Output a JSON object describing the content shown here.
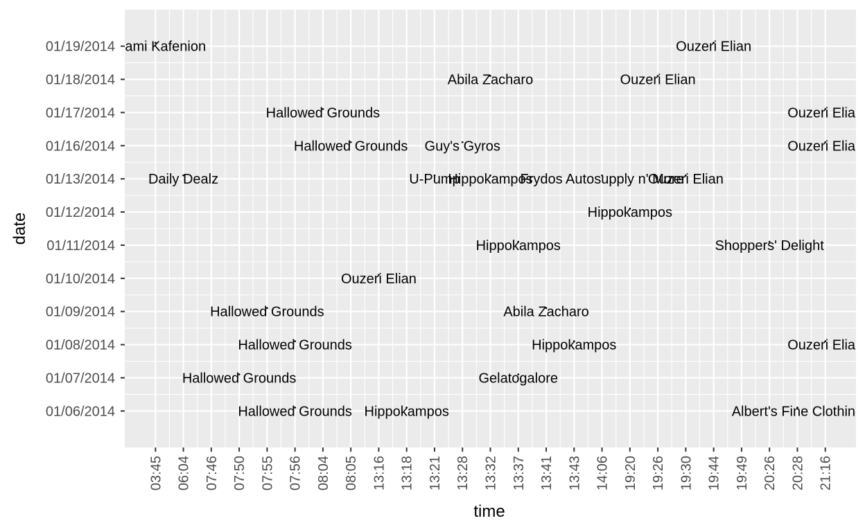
{
  "chart_data": {
    "type": "scatter",
    "title": "",
    "xlabel": "time",
    "ylabel": "date",
    "grid": true,
    "x_categories": [
      "03:45",
      "06:04",
      "07:46",
      "07:50",
      "07:55",
      "07:56",
      "08:04",
      "08:05",
      "13:16",
      "13:18",
      "13:21",
      "13:28",
      "13:32",
      "13:37",
      "13:41",
      "13:43",
      "14:06",
      "19:20",
      "19:26",
      "19:30",
      "19:44",
      "19:49",
      "20:26",
      "20:28",
      "21:16"
    ],
    "y_categories": [
      "01/06/2014",
      "01/07/2014",
      "01/08/2014",
      "01/09/2014",
      "01/10/2014",
      "01/11/2014",
      "01/12/2014",
      "01/13/2014",
      "01/16/2014",
      "01/17/2014",
      "01/18/2014",
      "01/19/2014"
    ],
    "points": [
      {
        "x": "03:45",
        "y": "01/19/2014",
        "label": "Kalami Kafenion"
      },
      {
        "x": "19:44",
        "y": "01/19/2014",
        "label": "Ouzeri Elian"
      },
      {
        "x": "13:32",
        "y": "01/18/2014",
        "label": "Abila Zacharo"
      },
      {
        "x": "19:26",
        "y": "01/18/2014",
        "label": "Ouzeri Elian"
      },
      {
        "x": "08:04",
        "y": "01/17/2014",
        "label": "Hallowed Grounds"
      },
      {
        "x": "21:16",
        "y": "01/17/2014",
        "label": "Ouzeri Elian"
      },
      {
        "x": "08:05",
        "y": "01/16/2014",
        "label": "Hallowed Grounds"
      },
      {
        "x": "13:28",
        "y": "01/16/2014",
        "label": "Guy's Gyros"
      },
      {
        "x": "21:16",
        "y": "01/16/2014",
        "label": "Ouzeri Elian"
      },
      {
        "x": "06:04",
        "y": "01/13/2014",
        "label": "Daily Dealz"
      },
      {
        "x": "13:21",
        "y": "01/13/2014",
        "label": "U-Pump"
      },
      {
        "x": "13:32",
        "y": "01/13/2014",
        "label": "Hippokampos"
      },
      {
        "x": "14:06",
        "y": "01/13/2014",
        "label": "Frydos Autosupply n' More"
      },
      {
        "x": "19:30",
        "y": "01/13/2014",
        "label": "Ouzeri Elian"
      },
      {
        "x": "19:20",
        "y": "01/12/2014",
        "label": "Hippokampos"
      },
      {
        "x": "13:37",
        "y": "01/11/2014",
        "label": "Hippokampos"
      },
      {
        "x": "20:26",
        "y": "01/11/2014",
        "label": "Shoppers' Delight"
      },
      {
        "x": "13:16",
        "y": "01/10/2014",
        "label": "Ouzeri Elian"
      },
      {
        "x": "07:55",
        "y": "01/09/2014",
        "label": "Hallowed Grounds"
      },
      {
        "x": "13:41",
        "y": "01/09/2014",
        "label": "Abila Zacharo"
      },
      {
        "x": "07:56",
        "y": "01/08/2014",
        "label": "Hallowed Grounds"
      },
      {
        "x": "13:43",
        "y": "01/08/2014",
        "label": "Hippokampos"
      },
      {
        "x": "21:16",
        "y": "01/08/2014",
        "label": "Ouzeri Elian"
      },
      {
        "x": "07:50",
        "y": "01/07/2014",
        "label": "Hallowed Grounds"
      },
      {
        "x": "13:37",
        "y": "01/07/2014",
        "label": "Gelatogalore"
      },
      {
        "x": "07:56",
        "y": "01/06/2014",
        "label": "Hallowed Grounds"
      },
      {
        "x": "13:18",
        "y": "01/06/2014",
        "label": "Hippokampos"
      },
      {
        "x": "20:28",
        "y": "01/06/2014",
        "label": "Albert's Fine Clothing"
      }
    ],
    "colors": {
      "panel": "#ebebeb",
      "grid": "#ffffff",
      "tick_text": "#4d4d4d",
      "label_text": "#000000"
    }
  }
}
